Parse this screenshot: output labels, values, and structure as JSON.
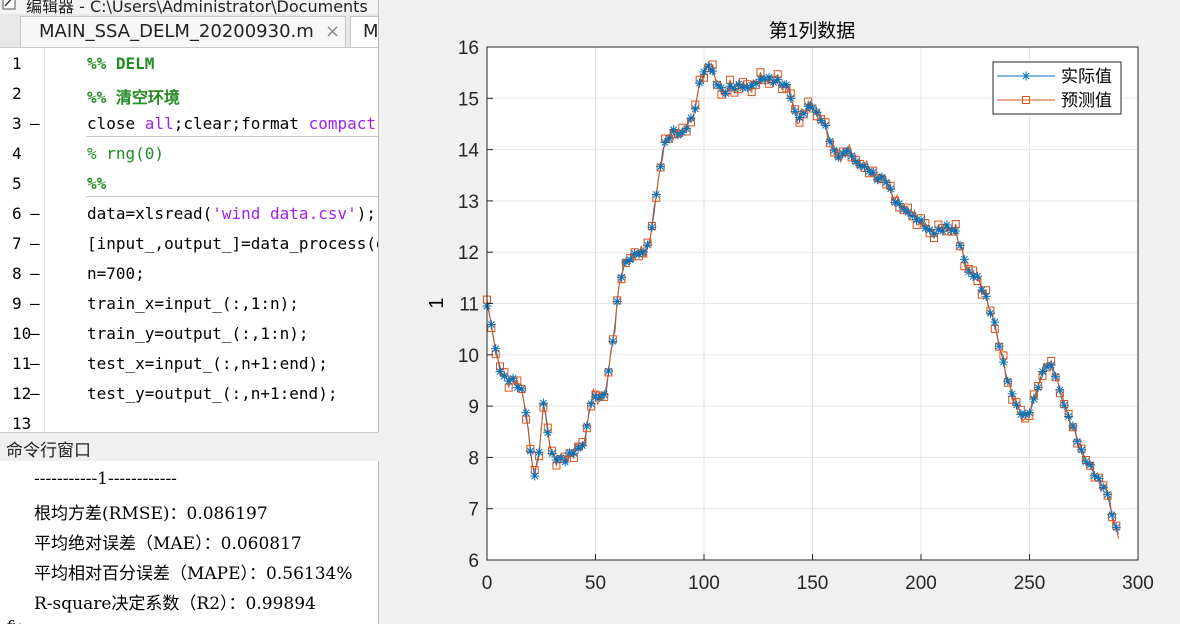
{
  "editor": {
    "title": "编辑器 - C:\\Users\\Administrator\\Documents",
    "tabs": [
      {
        "label": "MAIN_SSA_DELM_20200930.m"
      },
      {
        "label": "M"
      }
    ],
    "close_glyph": "×",
    "lines": [
      {
        "num": "1",
        "mark": "",
        "parts": [
          {
            "t": "%% DELM",
            "c": "green"
          }
        ]
      },
      {
        "num": "2",
        "mark": "",
        "parts": [
          {
            "t": "%% 清空环境",
            "c": "green"
          }
        ]
      },
      {
        "num": "3",
        "mark": "—",
        "parts": [
          {
            "t": "close ",
            "c": ""
          },
          {
            "t": "all",
            "c": "purple"
          },
          {
            "t": ";clear;format ",
            "c": ""
          },
          {
            "t": "compact",
            "c": "purple"
          }
        ]
      },
      {
        "num": "4",
        "mark": "",
        "parts": [
          {
            "t": "% rng(0)",
            "c": "comment"
          }
        ]
      },
      {
        "num": "5",
        "mark": "",
        "parts": [
          {
            "t": "%%",
            "c": "green"
          }
        ]
      },
      {
        "num": "6",
        "mark": "—",
        "parts": [
          {
            "t": "data=xlsread(",
            "c": ""
          },
          {
            "t": "'wind data.csv'",
            "c": "purple"
          },
          {
            "t": ");",
            "c": ""
          }
        ]
      },
      {
        "num": "7",
        "mark": "—",
        "parts": [
          {
            "t": "[input_,output_]=data_process(data,",
            "c": ""
          }
        ]
      },
      {
        "num": "8",
        "mark": "—",
        "parts": [
          {
            "t": "n=700;",
            "c": ""
          }
        ]
      },
      {
        "num": "9",
        "mark": "—",
        "parts": [
          {
            "t": "train_x=input_(:,1:n);",
            "c": ""
          }
        ]
      },
      {
        "num": "10",
        "mark": "—",
        "parts": [
          {
            "t": "train_y=output_(:,1:n);",
            "c": ""
          }
        ]
      },
      {
        "num": "11",
        "mark": "—",
        "parts": [
          {
            "t": "test_x=input_(:,n+1:end);",
            "c": ""
          }
        ]
      },
      {
        "num": "12",
        "mark": "—",
        "parts": [
          {
            "t": "test_y=output_(:,n+1:end);",
            "c": ""
          }
        ]
      },
      {
        "num": "13",
        "mark": "",
        "parts": []
      }
    ]
  },
  "command_window": {
    "title": "命令行窗口",
    "lines": [
      "-----------1------------",
      "根均方差(RMSE)：0.086197",
      "平均绝对误差（MAE）：0.060817",
      "平均相对百分误差（MAPE）：0.56134%",
      "R-square决定系数（R2）：0.99894"
    ],
    "prompt": "fx"
  },
  "chart_data": {
    "type": "line",
    "title": "第1列数据",
    "xlabel": "",
    "ylabel": "1",
    "xlim": [
      0,
      300
    ],
    "ylim": [
      6,
      16
    ],
    "xticks": [
      0,
      50,
      100,
      150,
      200,
      250,
      300
    ],
    "yticks": [
      6,
      7,
      8,
      9,
      10,
      11,
      12,
      13,
      14,
      15,
      16
    ],
    "grid": true,
    "legend_position": "top-right",
    "legend": [
      "实际值",
      "预测值"
    ],
    "series_colors": [
      "#0072bd",
      "#d95319"
    ],
    "keypoints": [
      [
        0,
        10.95
      ],
      [
        2,
        10.6
      ],
      [
        4,
        10.1
      ],
      [
        6,
        9.7
      ],
      [
        8,
        9.55
      ],
      [
        12,
        9.5
      ],
      [
        16,
        9.3
      ],
      [
        18,
        8.9
      ],
      [
        20,
        8.1
      ],
      [
        22,
        7.65
      ],
      [
        24,
        8.1
      ],
      [
        26,
        9.05
      ],
      [
        28,
        8.5
      ],
      [
        30,
        8.05
      ],
      [
        33,
        7.95
      ],
      [
        36,
        7.95
      ],
      [
        39,
        8.1
      ],
      [
        42,
        8.15
      ],
      [
        45,
        8.3
      ],
      [
        47,
        8.9
      ],
      [
        49,
        9.2
      ],
      [
        52,
        9.15
      ],
      [
        55,
        9.3
      ],
      [
        57,
        10.0
      ],
      [
        59,
        10.6
      ],
      [
        61,
        11.4
      ],
      [
        63,
        11.7
      ],
      [
        65,
        11.85
      ],
      [
        68,
        11.95
      ],
      [
        72,
        12.0
      ],
      [
        75,
        12.2
      ],
      [
        77,
        12.8
      ],
      [
        79,
        13.4
      ],
      [
        81,
        14.0
      ],
      [
        83,
        14.2
      ],
      [
        86,
        14.35
      ],
      [
        90,
        14.3
      ],
      [
        93,
        14.5
      ],
      [
        96,
        14.8
      ],
      [
        98,
        15.3
      ],
      [
        100,
        15.5
      ],
      [
        102,
        15.65
      ],
      [
        104,
        15.5
      ],
      [
        106,
        15.3
      ],
      [
        109,
        15.1
      ],
      [
        112,
        15.2
      ],
      [
        116,
        15.25
      ],
      [
        120,
        15.2
      ],
      [
        124,
        15.3
      ],
      [
        128,
        15.4
      ],
      [
        132,
        15.35
      ],
      [
        136,
        15.3
      ],
      [
        139,
        15.2
      ],
      [
        141,
        14.85
      ],
      [
        143,
        14.6
      ],
      [
        146,
        14.7
      ],
      [
        149,
        14.9
      ],
      [
        152,
        14.7
      ],
      [
        155,
        14.55
      ],
      [
        158,
        14.2
      ],
      [
        160,
        13.95
      ],
      [
        163,
        13.85
      ],
      [
        166,
        14.0
      ],
      [
        169,
        13.8
      ],
      [
        172,
        13.7
      ],
      [
        176,
        13.6
      ],
      [
        180,
        13.45
      ],
      [
        184,
        13.4
      ],
      [
        188,
        13.0
      ],
      [
        192,
        12.85
      ],
      [
        196,
        12.7
      ],
      [
        200,
        12.6
      ],
      [
        204,
        12.4
      ],
      [
        208,
        12.4
      ],
      [
        212,
        12.5
      ],
      [
        216,
        12.4
      ],
      [
        219,
        12.0
      ],
      [
        222,
        11.6
      ],
      [
        226,
        11.5
      ],
      [
        230,
        11.1
      ],
      [
        234,
        10.6
      ],
      [
        237,
        10.0
      ],
      [
        240,
        9.5
      ],
      [
        243,
        9.1
      ],
      [
        246,
        8.85
      ],
      [
        249,
        8.8
      ],
      [
        252,
        9.1
      ],
      [
        255,
        9.55
      ],
      [
        258,
        9.8
      ],
      [
        261,
        9.75
      ],
      [
        263,
        9.45
      ],
      [
        265,
        9.15
      ],
      [
        267,
        8.9
      ],
      [
        270,
        8.6
      ],
      [
        273,
        8.2
      ],
      [
        276,
        7.95
      ],
      [
        279,
        7.75
      ],
      [
        282,
        7.55
      ],
      [
        285,
        7.4
      ],
      [
        287,
        7.1
      ],
      [
        289,
        6.7
      ],
      [
        291,
        6.55
      ]
    ],
    "n_points": 292,
    "series": [
      {
        "name": "实际值",
        "marker": "asterisk"
      },
      {
        "name": "预测值",
        "marker": "square"
      }
    ]
  }
}
